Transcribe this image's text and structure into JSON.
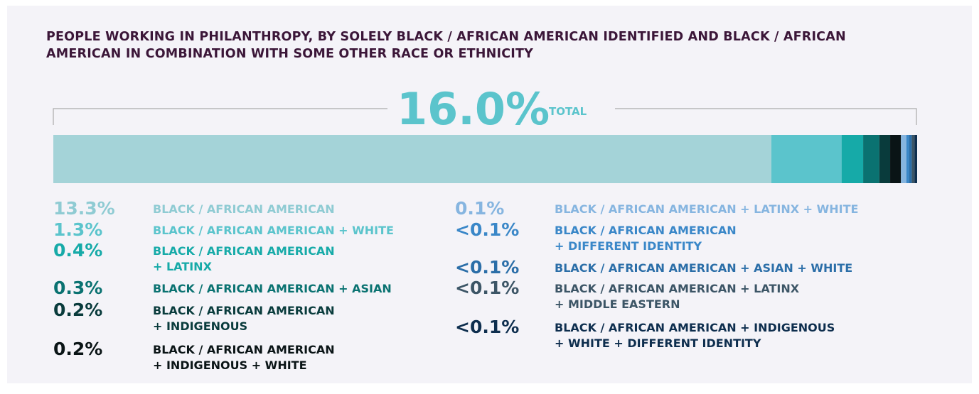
{
  "chart_data": {
    "type": "stacked-bar",
    "title": "PEOPLE WORKING IN PHILANTHROPY, BY SOLELY BLACK / AFRICAN AMERICAN IDENTIFIED AND BLACK / AFRICAN AMERICAN IN COMBINATION WITH SOME OTHER RACE OR ETHNICITY",
    "total": {
      "value": 16,
      "label": "16.0%"
    },
    "total_text": "TOTAL",
    "xlim": [
      0,
      16
    ],
    "categories": [
      "BLACK / AFRICAN AMERICAN",
      "BLACK / AFRICAN AMERICAN + WHITE",
      "BLACK / AFRICAN AMERICAN\n+ LATINX",
      "BLACK / AFRICAN AMERICAN + ASIAN",
      "BLACK / AFRICAN AMERICAN\n+ INDIGENOUS",
      "BLACK / AFRICAN AMERICAN\n+ INDIGENOUS + WHITE",
      "BLACK / AFRICAN AMERICAN + LATINX + WHITE",
      "BLACK / AFRICAN AMERICAN\n+ DIFFERENT IDENTITY",
      "BLACK / AFRICAN AMERICAN + ASIAN + WHITE",
      "BLACK / AFRICAN AMERICAN + LATINX\n+ MIDDLE EASTERN",
      "BLACK / AFRICAN AMERICAN + INDIGENOUS\n+ WHITE + DIFFERENT IDENTITY"
    ],
    "values": [
      13.3,
      1.3,
      0.4,
      0.3,
      0.2,
      0.2,
      0.1,
      0.05,
      0.05,
      0.05,
      0.05
    ],
    "value_labels": [
      "13.3%",
      "1.3%",
      "0.4%",
      "0.3%",
      "0.2%",
      "0.2%",
      "0.1%",
      "<0.1%",
      "<0.1%",
      "<0.1%",
      "<0.1%"
    ],
    "colors": [
      "#a4d3d8",
      "#5bc4cc",
      "#16aaa8",
      "#0a7271",
      "#093b3c",
      "#0a1416",
      "#86b5e0",
      "#3a87c8",
      "#2b6ea8",
      "#3c5566",
      "#0e2e4e"
    ]
  }
}
